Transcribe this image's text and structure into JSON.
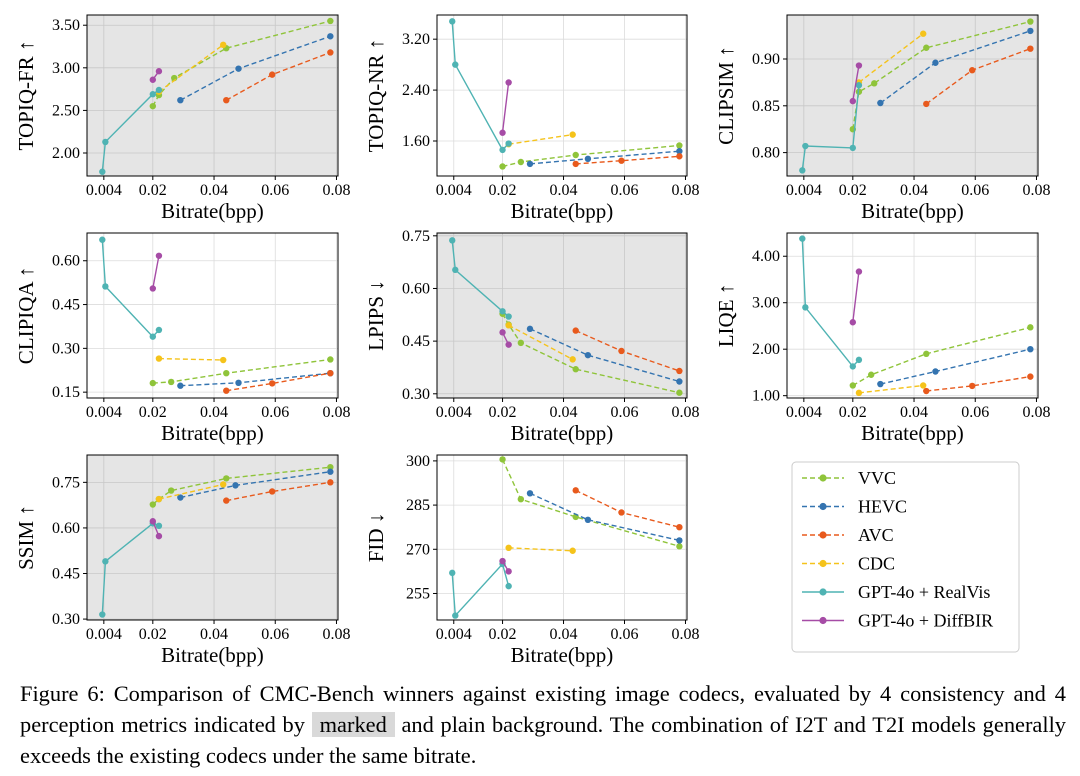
{
  "legend": [
    {
      "name": "VVC",
      "color": "#8fc43a",
      "dashed": true
    },
    {
      "name": "HEVC",
      "color": "#3474b0",
      "dashed": true
    },
    {
      "name": "AVC",
      "color": "#e85a1d",
      "dashed": true
    },
    {
      "name": "CDC",
      "color": "#f5c31b",
      "dashed": true
    },
    {
      "name": "GPT-4o + RealVis",
      "color": "#4fb3b3",
      "dashed": false
    },
    {
      "name": "GPT-4o + DiffBIR",
      "color": "#a64ca6",
      "dashed": false
    }
  ],
  "caption": {
    "part1": "Figure 6:  Comparison of CMC-Bench winners against existing image codecs, evaluated by 4 consistency and 4 perception metrics indicated by",
    "marked": "marked",
    "part2": "and plain background. The combination of I2T and T2I models generally exceeds the existing codecs under the same bitrate."
  },
  "chart_data": [
    {
      "type": "line",
      "ylabel": "TOPIQ-FR ↑",
      "xlabel": "Bitrate(bpp)",
      "shaded": true,
      "xlim": [
        -0.0015,
        0.0805
      ],
      "ylim": [
        1.73,
        3.62
      ],
      "xticks": [
        0.004,
        0.02,
        0.04,
        0.06,
        0.08
      ],
      "xticklabels": [
        "0.004",
        "0.02",
        "0.04",
        "0.06",
        "0.08"
      ],
      "yticks": [
        2.0,
        2.5,
        3.0,
        3.5
      ],
      "yticklabels": [
        "2.00",
        "2.50",
        "3.00",
        "3.50"
      ],
      "series": [
        {
          "name": "VVC",
          "x": [
            0.02,
            0.022,
            0.027,
            0.044,
            0.078
          ],
          "y": [
            2.55,
            2.68,
            2.88,
            3.23,
            3.55
          ]
        },
        {
          "name": "HEVC",
          "x": [
            0.029,
            0.048,
            0.078
          ],
          "y": [
            2.62,
            2.99,
            3.37
          ]
        },
        {
          "name": "AVC",
          "x": [
            0.044,
            0.059,
            0.078
          ],
          "y": [
            2.62,
            2.92,
            3.18
          ]
        },
        {
          "name": "CDC",
          "x": [
            0.022,
            0.043
          ],
          "y": [
            2.72,
            3.27
          ]
        },
        {
          "name": "GPT-4o + RealVis",
          "x": [
            0.0035,
            0.0045,
            0.02,
            0.022
          ],
          "y": [
            1.78,
            2.13,
            2.69,
            2.74
          ]
        },
        {
          "name": "GPT-4o + DiffBIR",
          "x": [
            0.02,
            0.022
          ],
          "y": [
            2.86,
            2.96
          ]
        }
      ]
    },
    {
      "type": "line",
      "ylabel": "TOPIQ-NR ↑",
      "xlabel": "Bitrate(bpp)",
      "shaded": false,
      "xlim": [
        -0.0015,
        0.0805
      ],
      "ylim": [
        1.05,
        3.58
      ],
      "xticks": [
        0.004,
        0.02,
        0.04,
        0.06,
        0.08
      ],
      "xticklabels": [
        "0.004",
        "0.02",
        "0.04",
        "0.06",
        "0.08"
      ],
      "yticks": [
        1.6,
        2.4,
        3.2
      ],
      "yticklabels": [
        "1.60",
        "2.40",
        "3.20"
      ],
      "series": [
        {
          "name": "VVC",
          "x": [
            0.02,
            0.026,
            0.044,
            0.078
          ],
          "y": [
            1.2,
            1.27,
            1.38,
            1.53
          ]
        },
        {
          "name": "HEVC",
          "x": [
            0.029,
            0.048,
            0.078
          ],
          "y": [
            1.24,
            1.32,
            1.44
          ]
        },
        {
          "name": "AVC",
          "x": [
            0.044,
            0.059,
            0.078
          ],
          "y": [
            1.24,
            1.29,
            1.36
          ]
        },
        {
          "name": "CDC",
          "x": [
            0.022,
            0.043
          ],
          "y": [
            1.55,
            1.7
          ]
        },
        {
          "name": "GPT-4o + RealVis",
          "x": [
            0.0035,
            0.0045,
            0.02,
            0.022
          ],
          "y": [
            3.48,
            2.8,
            1.46,
            1.56
          ]
        },
        {
          "name": "GPT-4o + DiffBIR",
          "x": [
            0.02,
            0.022
          ],
          "y": [
            1.73,
            2.52
          ]
        }
      ]
    },
    {
      "type": "line",
      "ylabel": "CLIPSIM ↑",
      "xlabel": "Bitrate(bpp)",
      "shaded": true,
      "xlim": [
        -0.0015,
        0.0805
      ],
      "ylim": [
        0.775,
        0.947
      ],
      "xticks": [
        0.004,
        0.02,
        0.04,
        0.06,
        0.08
      ],
      "xticklabels": [
        "0.004",
        "0.02",
        "0.04",
        "0.06",
        "0.08"
      ],
      "yticks": [
        0.8,
        0.85,
        0.9
      ],
      "yticklabels": [
        "0.80",
        "0.85",
        "0.90"
      ],
      "series": [
        {
          "name": "VVC",
          "x": [
            0.02,
            0.022,
            0.027,
            0.044,
            0.078
          ],
          "y": [
            0.825,
            0.865,
            0.874,
            0.912,
            0.94
          ]
        },
        {
          "name": "HEVC",
          "x": [
            0.029,
            0.047,
            0.078
          ],
          "y": [
            0.853,
            0.896,
            0.93
          ]
        },
        {
          "name": "AVC",
          "x": [
            0.044,
            0.059,
            0.078
          ],
          "y": [
            0.852,
            0.888,
            0.911
          ]
        },
        {
          "name": "CDC",
          "x": [
            0.022,
            0.043
          ],
          "y": [
            0.875,
            0.927
          ]
        },
        {
          "name": "GPT-4o + RealVis",
          "x": [
            0.0035,
            0.0045,
            0.02,
            0.022
          ],
          "y": [
            0.781,
            0.807,
            0.805,
            0.872
          ]
        },
        {
          "name": "GPT-4o + DiffBIR",
          "x": [
            0.02,
            0.022
          ],
          "y": [
            0.855,
            0.893
          ]
        }
      ]
    },
    {
      "type": "line",
      "ylabel": "CLIPIQA ↑",
      "xlabel": "Bitrate(bpp)",
      "shaded": false,
      "xlim": [
        -0.0015,
        0.0805
      ],
      "ylim": [
        0.13,
        0.695
      ],
      "xticks": [
        0.004,
        0.02,
        0.04,
        0.06,
        0.08
      ],
      "xticklabels": [
        "0.004",
        "0.02",
        "0.04",
        "0.06",
        "0.08"
      ],
      "yticks": [
        0.15,
        0.3,
        0.45,
        0.6
      ],
      "yticklabels": [
        "0.15",
        "0.30",
        "0.45",
        "0.60"
      ],
      "series": [
        {
          "name": "VVC",
          "x": [
            0.02,
            0.026,
            0.044,
            0.078
          ],
          "y": [
            0.181,
            0.185,
            0.215,
            0.262
          ]
        },
        {
          "name": "HEVC",
          "x": [
            0.029,
            0.048,
            0.078
          ],
          "y": [
            0.172,
            0.182,
            0.215
          ]
        },
        {
          "name": "AVC",
          "x": [
            0.044,
            0.059,
            0.078
          ],
          "y": [
            0.155,
            0.18,
            0.215
          ]
        },
        {
          "name": "CDC",
          "x": [
            0.022,
            0.043
          ],
          "y": [
            0.265,
            0.26
          ]
        },
        {
          "name": "GPT-4o + RealVis",
          "x": [
            0.0035,
            0.0045,
            0.02,
            0.022
          ],
          "y": [
            0.672,
            0.512,
            0.34,
            0.363
          ]
        },
        {
          "name": "GPT-4o + DiffBIR",
          "x": [
            0.02,
            0.022
          ],
          "y": [
            0.505,
            0.617
          ]
        }
      ]
    },
    {
      "type": "line",
      "ylabel": "LPIPS ↓",
      "xlabel": "Bitrate(bpp)",
      "shaded": true,
      "xlim": [
        -0.0015,
        0.0805
      ],
      "ylim": [
        0.288,
        0.758
      ],
      "xticks": [
        0.004,
        0.02,
        0.04,
        0.06,
        0.08
      ],
      "xticklabels": [
        "0.004",
        "0.02",
        "0.04",
        "0.06",
        "0.08"
      ],
      "yticks": [
        0.3,
        0.45,
        0.6,
        0.75
      ],
      "yticklabels": [
        "0.30",
        "0.45",
        "0.60",
        "0.75"
      ],
      "series": [
        {
          "name": "VVC",
          "x": [
            0.02,
            0.022,
            0.026,
            0.044,
            0.078
          ],
          "y": [
            0.528,
            0.497,
            0.445,
            0.37,
            0.303
          ]
        },
        {
          "name": "HEVC",
          "x": [
            0.029,
            0.048,
            0.078
          ],
          "y": [
            0.485,
            0.41,
            0.335
          ]
        },
        {
          "name": "AVC",
          "x": [
            0.044,
            0.059,
            0.078
          ],
          "y": [
            0.48,
            0.422,
            0.365
          ]
        },
        {
          "name": "CDC",
          "x": [
            0.022,
            0.043
          ],
          "y": [
            0.495,
            0.398
          ]
        },
        {
          "name": "GPT-4o + RealVis",
          "x": [
            0.0035,
            0.0045,
            0.02,
            0.022
          ],
          "y": [
            0.737,
            0.653,
            0.535,
            0.52
          ]
        },
        {
          "name": "GPT-4o + DiffBIR",
          "x": [
            0.02,
            0.022
          ],
          "y": [
            0.475,
            0.44
          ]
        }
      ]
    },
    {
      "type": "line",
      "ylabel": "LIQE ↑",
      "xlabel": "Bitrate(bpp)",
      "shaded": false,
      "xlim": [
        -0.0015,
        0.0805
      ],
      "ylim": [
        0.95,
        4.5
      ],
      "xticks": [
        0.004,
        0.02,
        0.04,
        0.06,
        0.08
      ],
      "xticklabels": [
        "0.004",
        "0.02",
        "0.04",
        "0.06",
        "0.08"
      ],
      "yticks": [
        1.0,
        2.0,
        3.0,
        4.0
      ],
      "yticklabels": [
        "1.00",
        "2.00",
        "3.00",
        "4.00"
      ],
      "series": [
        {
          "name": "VVC",
          "x": [
            0.02,
            0.026,
            0.044,
            0.078
          ],
          "y": [
            1.22,
            1.45,
            1.9,
            2.47
          ]
        },
        {
          "name": "HEVC",
          "x": [
            0.029,
            0.047,
            0.078
          ],
          "y": [
            1.25,
            1.52,
            2.0
          ]
        },
        {
          "name": "AVC",
          "x": [
            0.044,
            0.059,
            0.078
          ],
          "y": [
            1.1,
            1.21,
            1.41
          ]
        },
        {
          "name": "CDC",
          "x": [
            0.022,
            0.043
          ],
          "y": [
            1.06,
            1.22
          ]
        },
        {
          "name": "GPT-4o + RealVis",
          "x": [
            0.0035,
            0.0045,
            0.02,
            0.022
          ],
          "y": [
            4.38,
            2.9,
            1.63,
            1.77
          ]
        },
        {
          "name": "GPT-4o + DiffBIR",
          "x": [
            0.02,
            0.022
          ],
          "y": [
            2.58,
            3.67
          ]
        }
      ]
    },
    {
      "type": "line",
      "ylabel": "SSIM ↑",
      "xlabel": "Bitrate(bpp)",
      "shaded": true,
      "xlim": [
        -0.0015,
        0.0805
      ],
      "ylim": [
        0.297,
        0.84
      ],
      "xticks": [
        0.004,
        0.02,
        0.04,
        0.06,
        0.08
      ],
      "xticklabels": [
        "0.004",
        "0.02",
        "0.04",
        "0.06",
        "0.08"
      ],
      "yticks": [
        0.3,
        0.45,
        0.6,
        0.75
      ],
      "yticklabels": [
        "0.30",
        "0.45",
        "0.60",
        "0.75"
      ],
      "series": [
        {
          "name": "VVC",
          "x": [
            0.02,
            0.022,
            0.026,
            0.044,
            0.078
          ],
          "y": [
            0.677,
            0.695,
            0.723,
            0.763,
            0.8
          ]
        },
        {
          "name": "HEVC",
          "x": [
            0.029,
            0.047,
            0.078
          ],
          "y": [
            0.7,
            0.74,
            0.785
          ]
        },
        {
          "name": "AVC",
          "x": [
            0.044,
            0.059,
            0.078
          ],
          "y": [
            0.69,
            0.72,
            0.75
          ]
        },
        {
          "name": "CDC",
          "x": [
            0.022,
            0.043
          ],
          "y": [
            0.695,
            0.743
          ]
        },
        {
          "name": "GPT-4o + RealVis",
          "x": [
            0.0035,
            0.0045,
            0.02,
            0.022
          ],
          "y": [
            0.315,
            0.49,
            0.615,
            0.607
          ]
        },
        {
          "name": "GPT-4o + DiffBIR",
          "x": [
            0.02,
            0.022
          ],
          "y": [
            0.622,
            0.573
          ]
        }
      ]
    },
    {
      "type": "line",
      "ylabel": "FID ↓",
      "xlabel": "Bitrate(bpp)",
      "shaded": false,
      "xlim": [
        -0.0015,
        0.0805
      ],
      "ylim": [
        246,
        302
      ],
      "xticks": [
        0.004,
        0.02,
        0.04,
        0.06,
        0.08
      ],
      "xticklabels": [
        "0.004",
        "0.02",
        "0.04",
        "0.06",
        "0.08"
      ],
      "yticks": [
        255,
        270,
        285,
        300
      ],
      "yticklabels": [
        "255",
        "270",
        "285",
        "300"
      ],
      "series": [
        {
          "name": "VVC",
          "x": [
            0.02,
            0.026,
            0.044,
            0.078
          ],
          "y": [
            300.5,
            287,
            281,
            271
          ]
        },
        {
          "name": "HEVC",
          "x": [
            0.029,
            0.048,
            0.078
          ],
          "y": [
            289,
            280,
            273
          ]
        },
        {
          "name": "AVC",
          "x": [
            0.044,
            0.059,
            0.078
          ],
          "y": [
            290,
            282.5,
            277.5
          ]
        },
        {
          "name": "CDC",
          "x": [
            0.022,
            0.043
          ],
          "y": [
            270.5,
            269.5
          ]
        },
        {
          "name": "GPT-4o + RealVis",
          "x": [
            0.0035,
            0.0045,
            0.02,
            0.022
          ],
          "y": [
            262,
            247.5,
            265,
            257.5
          ]
        },
        {
          "name": "GPT-4o + DiffBIR",
          "x": [
            0.02,
            0.022
          ],
          "y": [
            266,
            262.5
          ]
        }
      ]
    }
  ]
}
